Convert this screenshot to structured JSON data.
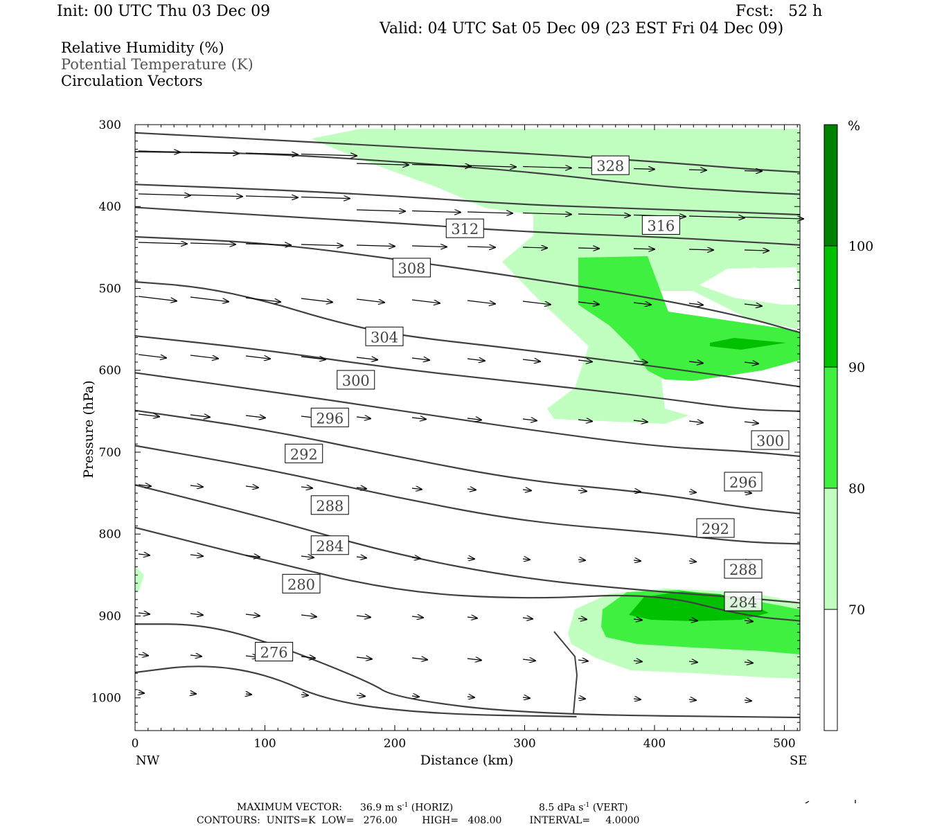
{
  "header": {
    "init": "Init: 00 UTC Thu 03 Dec 09",
    "fcst": "Fcst:   52 h",
    "valid": "Valid: 04 UTC Sat 05 Dec 09 (23 EST Fri 04 Dec 09)"
  },
  "legend_fields": [
    {
      "text": "Relative Humidity (%)",
      "color": "#000000"
    },
    {
      "text": "Potential Temperature (K)",
      "color": "#555555"
    },
    {
      "text": "Circulation Vectors",
      "color": "#000000"
    }
  ],
  "footer": {
    "max_vector_label": "MAXIMUM VECTOR:",
    "horiz": "36.9 m s",
    "horiz_unit": "(HORIZ)",
    "vert": "8.5 dPa s",
    "vert_unit": "(VERT)",
    "contours": "CONTOURS:  UNITS=K  LOW=   276.00        HIGH=   408.00         INTERVAL=     4.0000"
  },
  "colorbar": {
    "unit": "%",
    "levels": [
      "70",
      "80",
      "90",
      "100"
    ],
    "colors": [
      "#ffffff",
      "#c0ffc0",
      "#40f040",
      "#00c000",
      "#008000"
    ]
  },
  "chart_data": {
    "type": "cross-section",
    "xlabel": "Distance (km)",
    "ylabel": "Pressure (hPa)",
    "xlim": [
      0,
      512
    ],
    "ylim": [
      1040,
      300
    ],
    "y_scale": "linear, inverted",
    "x_ticks": [
      "0",
      "100",
      "200",
      "300",
      "400",
      "500"
    ],
    "y_ticks": [
      "300",
      "400",
      "500",
      "600",
      "700",
      "800",
      "900",
      "1000"
    ],
    "x_end_labels": {
      "left": "NW",
      "right": "SE"
    },
    "theta_contours": [
      {
        "label": "328",
        "label_pos": [
          366,
          350
        ],
        "points": [
          [
            0,
            310
          ],
          [
            100,
            318
          ],
          [
            200,
            327
          ],
          [
            300,
            335
          ],
          [
            400,
            345
          ],
          [
            470,
            354
          ],
          [
            512,
            358
          ]
        ]
      },
      {
        "label": "",
        "points": [
          [
            0,
            333
          ],
          [
            100,
            335
          ],
          [
            200,
            345
          ],
          [
            300,
            357
          ],
          [
            400,
            375
          ],
          [
            470,
            382
          ],
          [
            512,
            385
          ]
        ]
      },
      {
        "label": "",
        "points": [
          [
            0,
            373
          ],
          [
            100,
            379
          ],
          [
            200,
            387
          ],
          [
            300,
            398
          ],
          [
            400,
            403
          ],
          [
            512,
            410
          ]
        ]
      },
      {
        "label": "316",
        "label_pos": [
          405,
          423
        ],
        "points": [
          [
            0,
            401
          ],
          [
            100,
            411
          ],
          [
            200,
            420
          ],
          [
            300,
            431
          ],
          [
            400,
            437
          ],
          [
            470,
            443
          ],
          [
            512,
            447
          ]
        ]
      },
      {
        "label": "312",
        "label_pos": [
          254,
          427
        ],
        "points": [
          [
            0,
            437
          ],
          [
            100,
            444
          ],
          [
            200,
            464
          ],
          [
            300,
            487
          ],
          [
            400,
            512
          ],
          [
            470,
            535
          ],
          [
            512,
            554
          ]
        ]
      },
      {
        "label": "308",
        "label_pos": [
          213,
          475
        ],
        "points": [
          [
            0,
            492
          ],
          [
            50,
            498
          ],
          [
            100,
            515
          ],
          [
            150,
            539
          ],
          [
            200,
            557
          ],
          [
            300,
            575
          ],
          [
            400,
            595
          ],
          [
            512,
            620
          ]
        ]
      },
      {
        "label": "304",
        "label_pos": [
          192,
          559
        ],
        "points": [
          [
            0,
            558
          ],
          [
            100,
            575
          ],
          [
            200,
            598
          ],
          [
            300,
            615
          ],
          [
            400,
            633
          ],
          [
            470,
            648
          ],
          [
            512,
            650
          ]
        ]
      },
      {
        "label": "300",
        "label_pos": [
          170,
          612
        ],
        "points": [
          [
            0,
            603
          ],
          [
            100,
            625
          ],
          [
            200,
            648
          ],
          [
            300,
            672
          ],
          [
            400,
            693
          ],
          [
            470,
            699
          ],
          [
            512,
            705
          ]
        ]
      },
      {
        "label": "296",
        "label_pos": [
          150,
          658
        ],
        "points": [
          [
            0,
            649
          ],
          [
            100,
            672
          ],
          [
            200,
            705
          ],
          [
            300,
            735
          ],
          [
            400,
            750
          ],
          [
            470,
            768
          ],
          [
            512,
            775
          ]
        ]
      },
      {
        "label": "292",
        "label_pos": [
          130,
          702
        ],
        "points": [
          [
            0,
            692
          ],
          [
            100,
            720
          ],
          [
            200,
            755
          ],
          [
            300,
            785
          ],
          [
            400,
            798
          ],
          [
            470,
            810
          ],
          [
            512,
            812
          ]
        ]
      },
      {
        "label": "288",
        "label_pos": [
          150,
          765
        ],
        "points": [
          [
            0,
            740
          ],
          [
            100,
            780
          ],
          [
            200,
            825
          ],
          [
            300,
            855
          ],
          [
            400,
            870
          ],
          [
            470,
            878
          ],
          [
            512,
            884
          ]
        ]
      },
      {
        "label": "284",
        "label_pos": [
          150,
          814
        ],
        "points": [
          [
            0,
            792
          ],
          [
            100,
            832
          ],
          [
            200,
            870
          ],
          [
            300,
            880
          ],
          [
            400,
            872
          ],
          [
            470,
            900
          ],
          [
            512,
            906
          ]
        ]
      },
      {
        "label": "280",
        "label_pos": [
          128,
          861
        ],
        "points": [
          [
            0,
            910
          ],
          [
            50,
            910
          ],
          [
            100,
            930
          ],
          [
            180,
            980
          ],
          [
            200,
            1000
          ],
          [
            300,
            1020
          ],
          [
            512,
            1024
          ]
        ]
      },
      {
        "label": "276",
        "label_pos": [
          107,
          944
        ],
        "points": [
          [
            0,
            969
          ],
          [
            50,
            959
          ],
          [
            100,
            970
          ],
          [
            150,
            1005
          ],
          [
            230,
            1020
          ],
          [
            340,
            1023
          ]
        ]
      }
    ],
    "arrows_per_row": [
      12,
      12,
      12,
      12,
      12,
      12,
      12,
      12,
      12,
      12,
      12,
      12,
      12,
      12,
      12,
      12
    ]
  }
}
